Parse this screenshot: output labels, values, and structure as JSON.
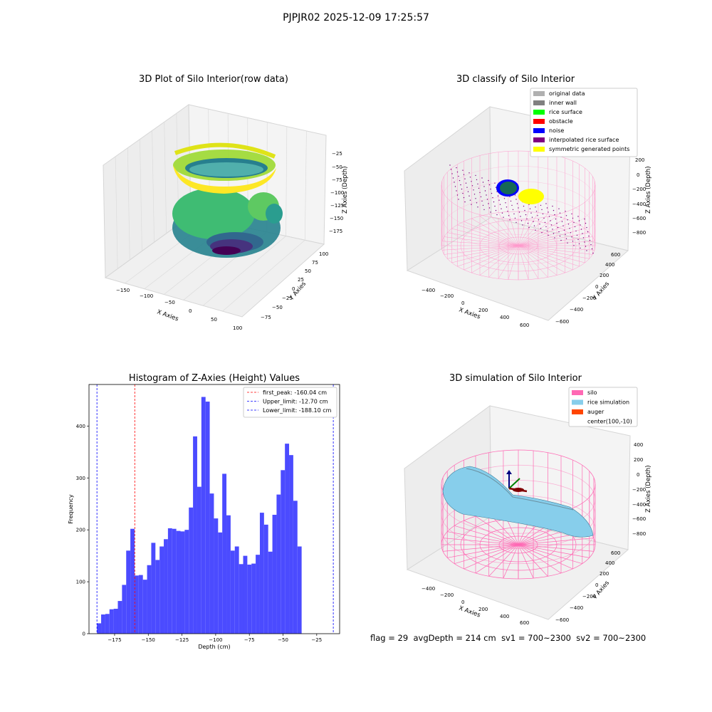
{
  "suptitle": "PJPJR02 2025-12-09 17:25:57",
  "colors": {
    "hist_bar": "#4b4bff",
    "first_peak": "#ff0000",
    "limits": "#0000ff",
    "silo": "#ff69b4",
    "rice": "#87ceeb",
    "auger": "#ff4500",
    "viridis_low": "#440154",
    "viridis_mid": "#21918c",
    "viridis_high": "#fde725",
    "original_data": "#b0b0b0",
    "inner_wall": "#808080",
    "rice_surface": "#00ff00",
    "obstacle": "#ff0000",
    "noise": "#0000ff",
    "interpolated": "#800080",
    "symmetric": "#ffff00"
  },
  "chart_data": [
    {
      "type": "scatter",
      "title": "3D Plot of Silo Interior(row data)",
      "xlabel": "X Axies",
      "ylabel": "Y Axies",
      "zlabel": "Z Axies (Depth)",
      "x_ticks": [
        "−150",
        "−100",
        "−50",
        "0",
        "50",
        "100"
      ],
      "y_ticks": [
        "−75",
        "−50",
        "−25",
        "0",
        "25",
        "50",
        "75",
        "100"
      ],
      "z_ticks": [
        "−25",
        "−50",
        "−75",
        "−100",
        "−125",
        "−150",
        "−175"
      ],
      "colormap": "viridis"
    },
    {
      "type": "scatter",
      "title": "3D classify of Silo Interior",
      "xlabel": "X Axies",
      "ylabel": "Y Axies",
      "zlabel": "Z Axies (Depth)",
      "x_ticks": [
        "−400",
        "−200",
        "0",
        "200",
        "400",
        "600"
      ],
      "y_ticks": [
        "−600",
        "−400",
        "−200",
        "0",
        "200",
        "400",
        "600"
      ],
      "z_ticks": [
        "200",
        "0",
        "−200",
        "−400",
        "−600",
        "−800"
      ],
      "legend": [
        {
          "name": "original data",
          "color_key": "original_data"
        },
        {
          "name": "inner wall",
          "color_key": "inner_wall"
        },
        {
          "name": "rice surface",
          "color_key": "rice_surface"
        },
        {
          "name": "obstacle",
          "color_key": "obstacle"
        },
        {
          "name": "noise",
          "color_key": "noise"
        },
        {
          "name": "interpolated rice surface",
          "color_key": "interpolated"
        },
        {
          "name": "symmetric generated points",
          "color_key": "symmetric"
        }
      ],
      "legend_loc": "upper right"
    },
    {
      "type": "bar",
      "title": "Histogram of Z-Axies (Height) Values",
      "xlabel": "Depth (cm)",
      "ylabel": "Frequency",
      "xlim": [
        -194,
        -8
      ],
      "ylim": [
        0,
        480
      ],
      "bin_width": 3.1,
      "bin_start": -188.1,
      "values": [
        20,
        37,
        38,
        47,
        48,
        63,
        94,
        160,
        202,
        112,
        113,
        104,
        132,
        175,
        142,
        168,
        182,
        203,
        202,
        198,
        197,
        200,
        243,
        380,
        283,
        456,
        447,
        270,
        222,
        195,
        308,
        228,
        160,
        168,
        134,
        150,
        133,
        135,
        152,
        233,
        210,
        158,
        229,
        268,
        315,
        366,
        344,
        256,
        168
      ],
      "x_ticks": [
        -175,
        -150,
        -125,
        -100,
        -75,
        -50,
        -25
      ],
      "x_tick_labels": [
        "−175",
        "−150",
        "−125",
        "−100",
        "−75",
        "−50",
        "−25"
      ],
      "y_ticks": [
        0,
        100,
        200,
        300,
        400
      ],
      "lines": [
        {
          "name": "first_peak: -160.04 cm",
          "x": -160.04,
          "color_key": "first_peak"
        },
        {
          "name": "Upper_limit: -12.70 cm",
          "x": -12.7,
          "color_key": "limits"
        },
        {
          "name": "Lower_limit: -188.10 cm",
          "x": -188.1,
          "color_key": "limits"
        }
      ],
      "legend_loc": "upper right"
    },
    {
      "type": "surface",
      "title": "3D simulation of Silo Interior",
      "xlabel": "X Axies",
      "ylabel": "Y Axies",
      "zlabel": "Z Axies (Depth)",
      "x_ticks": [
        "−400",
        "−200",
        "0",
        "200",
        "400",
        "600"
      ],
      "y_ticks": [
        "−600",
        "−400",
        "−200",
        "0",
        "200",
        "400",
        "600"
      ],
      "z_ticks": [
        "400",
        "200",
        "0",
        "−200",
        "−400",
        "−600",
        "−800"
      ],
      "legend": [
        {
          "name": "silo",
          "color_key": "silo"
        },
        {
          "name": "rice simulation",
          "color_key": "rice"
        },
        {
          "name": "auger",
          "color_key": "auger"
        },
        {
          "name": "center(100,-10)",
          "color_key": ""
        }
      ],
      "legend_loc": "upper right"
    }
  ],
  "footer": {
    "flag": "flag = 29",
    "avg": "avgDepth = 214 cm",
    "sv1": "sv1 = 700~2300",
    "sv2": "sv2 = 700~2300"
  }
}
